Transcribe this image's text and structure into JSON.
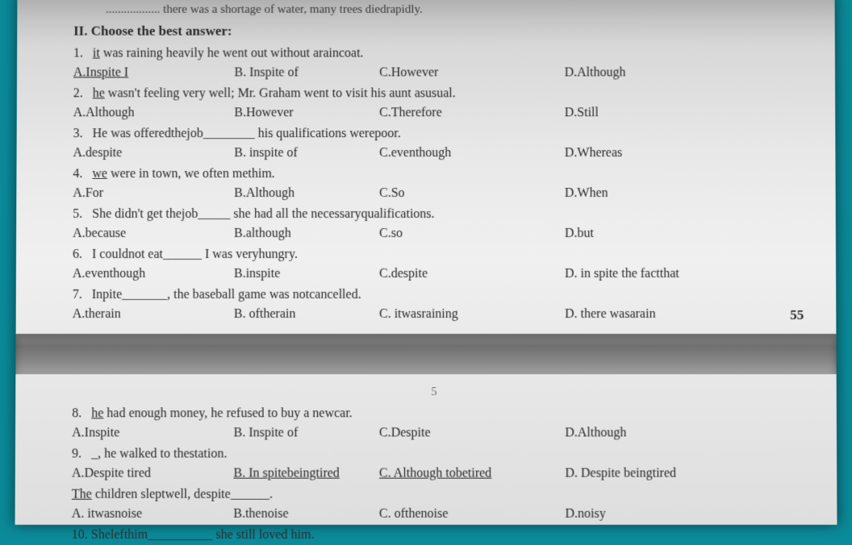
{
  "intro": ".................. there was a shortage of water, many trees diedrapidly.",
  "section_title": "II.    Choose the best answer:",
  "questions": [
    {
      "num": "1.",
      "text_prefix": "it",
      "text_rest": " was raining heavily he went out without araincoat.",
      "underline_prefix": true,
      "options": {
        "a": "A.Inspite I",
        "b": "B. Inspite of",
        "c": "C.However",
        "d": "D.Although"
      },
      "opt_a_underline": true
    },
    {
      "num": "2.",
      "text_prefix": "he",
      "text_rest": " wasn't feeling very well; Mr. Graham went to visit his aunt asusual.",
      "underline_prefix": true,
      "options": {
        "a": "A.Although",
        "b": "B.However",
        "c": "C.Therefore",
        "d": "D.Still"
      }
    },
    {
      "num": "3.",
      "text_full": "He was offeredthejob________ his qualifications werepoor.",
      "options": {
        "a": "A.despite",
        "b": "B. inspite of",
        "c": "C.eventhough",
        "d": "D.Whereas"
      }
    },
    {
      "num": "4.",
      "text_prefix": "we",
      "text_rest": " were in town, we often methim.",
      "underline_prefix": true,
      "options": {
        "a": "A.For",
        "b": "B.Although",
        "c": "C.So",
        "d": "D.When"
      }
    },
    {
      "num": "5.",
      "text_full": "She didn't get thejob_____ she had all the necessaryqualifications.",
      "options": {
        "a": "A.because",
        "b": "B.although",
        "c": "C.so",
        "d": "D.but"
      }
    },
    {
      "num": "6.",
      "text_full": "I couldnot eat______ I was veryhungry.",
      "options": {
        "a": "A.eventhough",
        "b": "B.inspite",
        "c": "C.despite",
        "d": "D. in spite the factthat"
      }
    },
    {
      "num": "7.",
      "text_full": "Inpite_______, the baseball game was notcancelled.",
      "options": {
        "a": "A.therain",
        "b": "B. oftherain",
        "c": "C. itwasraining",
        "d": "D. there wasarain"
      }
    }
  ],
  "page_num_top": "55",
  "small_page_num": "5",
  "questions2": [
    {
      "num": "8.",
      "text_prefix": "he",
      "text_rest": " had enough money, he refused to buy a newcar.",
      "underline_prefix": true,
      "options": {
        "a": "A.Inspite",
        "b": "B. Inspite of",
        "c": "C.Despite",
        "d": "D.Although"
      }
    },
    {
      "num": "9.",
      "text_full": "_, he walked to thestation.",
      "options": {
        "a": "A.Despite tired",
        "b": "B. In spitebeingtired",
        "c": "C. Although tobetired",
        "d": "D. Despite beingtired"
      },
      "opt_b_underline": true,
      "opt_c_underline": true
    },
    {
      "num_text_prefix": "The",
      "text_rest": " children sleptwell, despite______.",
      "underline_prefix": true,
      "no_num": true,
      "options": {
        "a": "A. itwasnoise",
        "b": "B.thenoise",
        "c": "C. ofthenoise",
        "d": "D.noisy"
      }
    },
    {
      "num": "10.",
      "text_full": "Shelefthim__________ she still loved him.",
      "no_options": true
    }
  ],
  "colors": {
    "background": "#0a8a9a",
    "paper_light": "#f0f0f0",
    "paper_dark": "#a8a8a8",
    "text": "#2a2a2a"
  }
}
